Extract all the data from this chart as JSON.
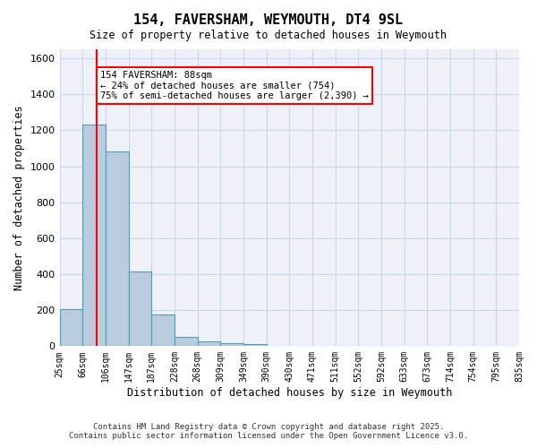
{
  "title_line1": "154, FAVERSHAM, WEYMOUTH, DT4 9SL",
  "title_line2": "Size of property relative to detached houses in Weymouth",
  "xlabel": "Distribution of detached houses by size in Weymouth",
  "ylabel": "Number of detached properties",
  "bar_values": [
    205,
    1230,
    1080,
    415,
    175,
    50,
    25,
    15,
    10,
    0,
    0,
    0,
    0,
    0,
    0,
    0,
    0,
    0,
    0,
    0
  ],
  "bin_labels": [
    "25sqm",
    "66sqm",
    "106sqm",
    "147sqm",
    "187sqm",
    "228sqm",
    "268sqm",
    "309sqm",
    "349sqm",
    "390sqm",
    "430sqm",
    "471sqm",
    "511sqm",
    "552sqm",
    "592sqm",
    "633sqm",
    "673sqm",
    "714sqm",
    "754sqm",
    "795sqm",
    "835sqm"
  ],
  "bar_color": "#b8ccdd",
  "bar_edge_color": "#5599bb",
  "red_line_x": 1.63,
  "annotation_text": "154 FAVERSHAM: 88sqm\n← 24% of detached houses are smaller (754)\n75% of semi-detached houses are larger (2,390) →",
  "annotation_box_color": "white",
  "annotation_box_edge_color": "red",
  "ylim": [
    0,
    1650
  ],
  "yticks": [
    0,
    200,
    400,
    600,
    800,
    1000,
    1200,
    1400,
    1600
  ],
  "grid_color": "#c8d8e8",
  "bg_color": "#eef2f8",
  "footer_line1": "Contains HM Land Registry data © Crown copyright and database right 2025.",
  "footer_line2": "Contains public sector information licensed under the Open Government Licence v3.0."
}
